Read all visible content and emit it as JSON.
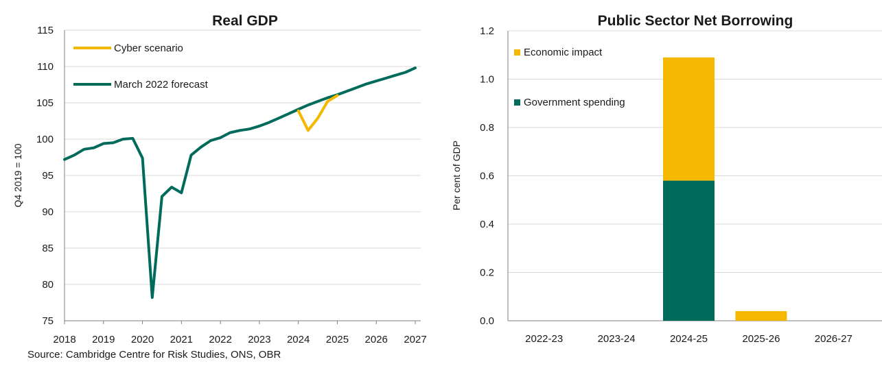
{
  "source": "Source: Cambridge Centre for Risk Studies, ONS, OBR",
  "colors": {
    "teal": "#006b5b",
    "gold": "#f5b800",
    "grid": "#d9d9d9",
    "axis": "#7f7f7f"
  },
  "chart_data": [
    {
      "type": "line",
      "title": "Real GDP",
      "xlabel": "",
      "ylabel": "Q4 2019 = 100",
      "xlim": [
        2018,
        2027
      ],
      "ylim": [
        75,
        115
      ],
      "yticks": [
        75,
        80,
        85,
        90,
        95,
        100,
        105,
        110,
        115
      ],
      "xticks": [
        "2018",
        "2019",
        "2020",
        "2021",
        "2022",
        "2023",
        "2024",
        "2025",
        "2026",
        "2027"
      ],
      "grid": "horizontal",
      "legend_position": "top-left",
      "series": [
        {
          "name": "Cyber scenario",
          "color": "#f5b800",
          "x": [
            2024.0,
            2024.25,
            2024.5,
            2024.75,
            2025.0
          ],
          "y": [
            103.9,
            101.2,
            102.9,
            105.2,
            106.0
          ]
        },
        {
          "name": "March 2022 forecast",
          "color": "#006b5b",
          "x": [
            2018.0,
            2018.25,
            2018.5,
            2018.75,
            2019.0,
            2019.25,
            2019.5,
            2019.75,
            2020.0,
            2020.25,
            2020.5,
            2020.75,
            2021.0,
            2021.25,
            2021.5,
            2021.75,
            2022.0,
            2022.25,
            2022.5,
            2022.75,
            2023.0,
            2023.25,
            2023.5,
            2023.75,
            2024.0,
            2024.25,
            2024.5,
            2024.75,
            2025.0,
            2025.25,
            2025.5,
            2025.75,
            2026.0,
            2026.25,
            2026.5,
            2026.75,
            2027.0
          ],
          "y": [
            97.2,
            97.8,
            98.6,
            98.8,
            99.4,
            99.5,
            100.0,
            100.1,
            97.4,
            78.2,
            92.1,
            93.4,
            92.6,
            97.8,
            98.9,
            99.8,
            100.2,
            100.9,
            101.2,
            101.4,
            101.8,
            102.3,
            102.9,
            103.5,
            104.1,
            104.7,
            105.2,
            105.7,
            106.1,
            106.6,
            107.1,
            107.6,
            108.0,
            108.4,
            108.8,
            109.2,
            109.8
          ]
        }
      ]
    },
    {
      "type": "bar",
      "stacked": true,
      "title": "Public Sector Net Borrowing",
      "xlabel": "",
      "ylabel": "Per cent of GDP",
      "ylim": [
        0,
        1.2
      ],
      "yticks": [
        "0.0",
        "0.2",
        "0.4",
        "0.6",
        "0.8",
        "1.0",
        "1.2"
      ],
      "categories": [
        "2022-23",
        "2023-24",
        "2024-25",
        "2025-26",
        "2026-27"
      ],
      "grid": "horizontal",
      "legend_position": "top-left",
      "series": [
        {
          "name": "Government spending",
          "color": "#006b5b",
          "values": [
            0,
            0,
            0.58,
            0,
            0
          ]
        },
        {
          "name": "Economic impact",
          "color": "#f5b800",
          "values": [
            0,
            0,
            0.51,
            0.04,
            0
          ]
        }
      ]
    }
  ]
}
